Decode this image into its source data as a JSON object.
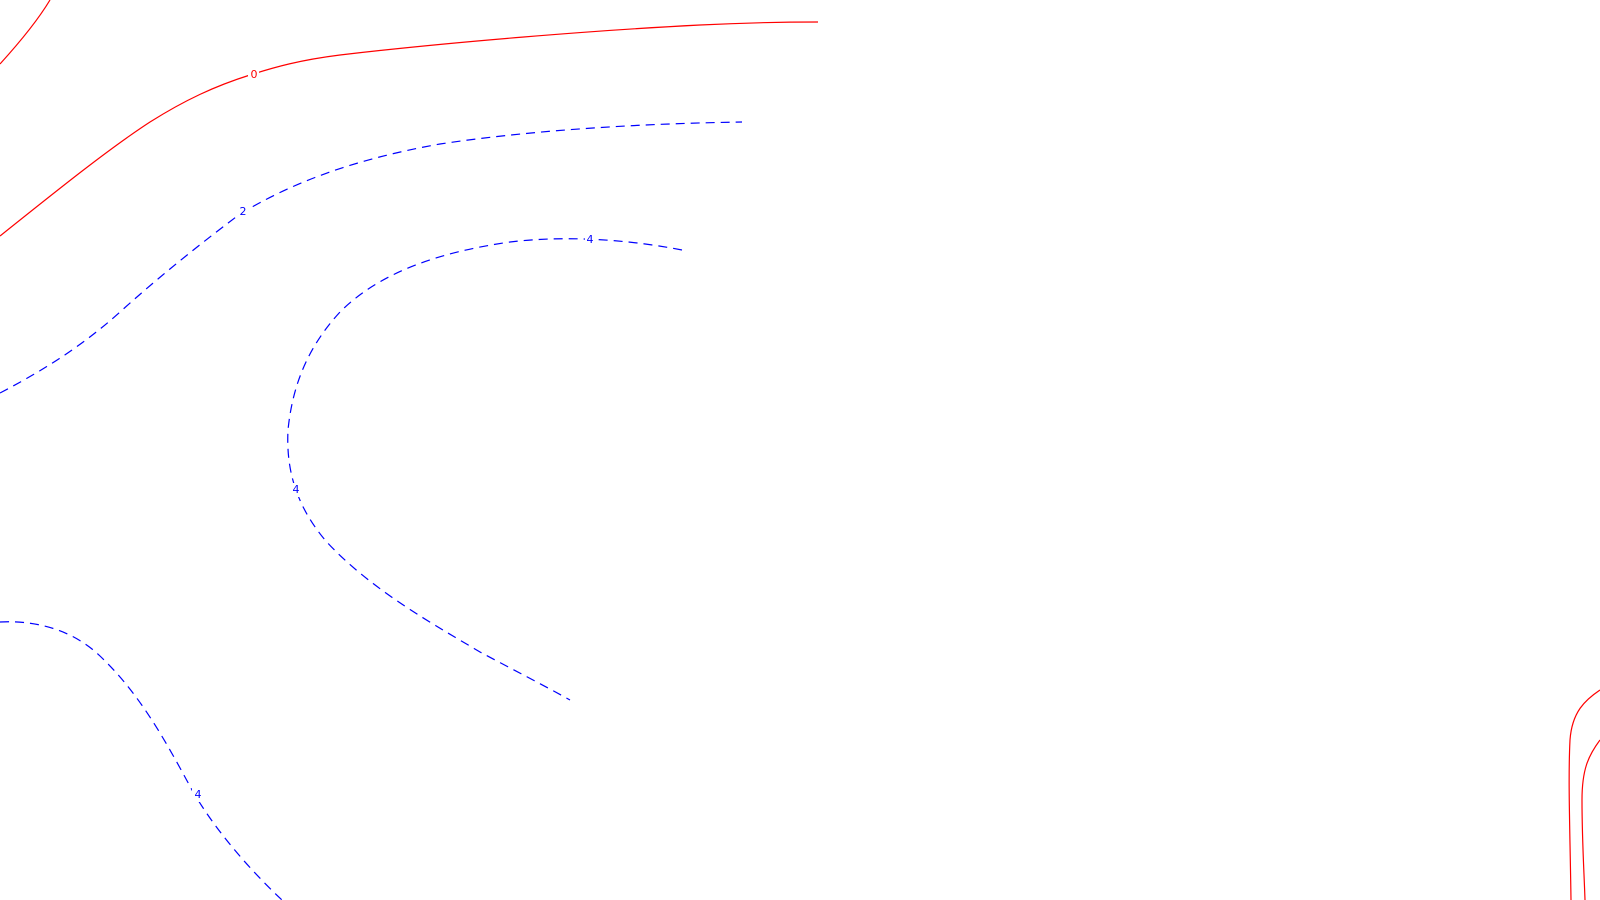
{
  "map": {
    "colors": {
      "zero_contour": "#ff0000",
      "positive_contour": "#0000ff",
      "background": "#ffffff"
    },
    "contours": [
      {
        "id": "zero-contour-top-edge",
        "level": "0",
        "kind": "zero"
      },
      {
        "id": "zero-contour-main",
        "level": "0",
        "kind": "zero"
      },
      {
        "id": "contour-2",
        "level": "2",
        "kind": "positive"
      },
      {
        "id": "contour-4-arc",
        "level": "4",
        "kind": "positive"
      },
      {
        "id": "contour-4-bottom-left",
        "level": "4",
        "kind": "positive"
      },
      {
        "id": "zero-contour-bottom-right-outer",
        "level": "0",
        "kind": "zero"
      },
      {
        "id": "zero-contour-bottom-right-inner",
        "level": "0",
        "kind": "zero"
      }
    ],
    "labels": [
      {
        "id": "label-0",
        "text": "0",
        "kind": "zero"
      },
      {
        "id": "label-2",
        "text": "2",
        "kind": "positive"
      },
      {
        "id": "label-4-top",
        "text": "4",
        "kind": "positive"
      },
      {
        "id": "label-4-left",
        "text": "4",
        "kind": "positive"
      },
      {
        "id": "label-4-bottom",
        "text": "4",
        "kind": "positive"
      }
    ]
  }
}
